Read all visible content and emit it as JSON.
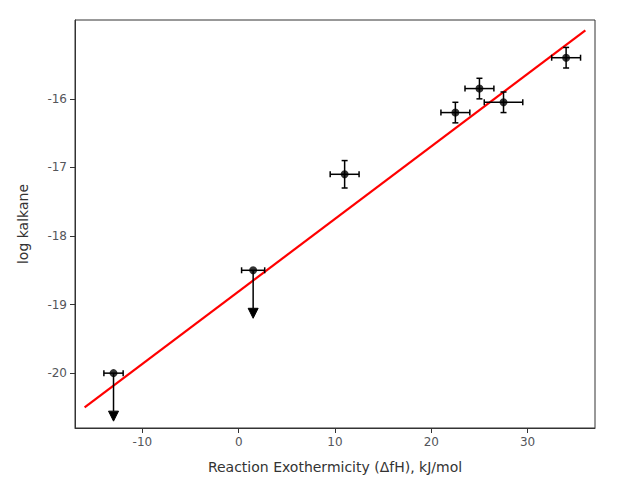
{
  "chart_data": {
    "type": "scatter",
    "xlabel": "Reaction Exothermicity (ΔfH), kJ/mol",
    "ylabel": "log kalkane",
    "xlim": [
      -17,
      37
    ],
    "ylim": [
      -20.8,
      -14.85
    ],
    "xticks": [
      -10,
      0,
      10,
      20,
      30
    ],
    "yticks": [
      -20,
      -19,
      -18,
      -17,
      -16
    ],
    "grid": false,
    "series": [
      {
        "type": "line",
        "color": "#ff0000",
        "x": [
          -16,
          36
        ],
        "y": [
          -20.5,
          -15.0
        ]
      },
      {
        "type": "scatter",
        "color": "black",
        "marker": "circle",
        "x": [
          -13.0,
          1.5,
          11.0,
          22.5,
          25.0,
          27.5,
          34.0
        ],
        "y": [
          -20.0,
          -18.5,
          -17.1,
          -16.2,
          -15.85,
          -16.05,
          -15.4
        ],
        "xerr": [
          1.0,
          1.2,
          1.5,
          1.5,
          1.5,
          2.0,
          1.5
        ],
        "yerr_upper": [
          null,
          null,
          0.2,
          0.15,
          0.15,
          0.15,
          0.15
        ],
        "yerr_lower": [
          null,
          null,
          0.2,
          0.15,
          0.15,
          0.15,
          0.15
        ],
        "upper_limit": [
          true,
          true,
          false,
          false,
          false,
          false,
          false
        ],
        "arrow_length": 0.7
      }
    ]
  }
}
